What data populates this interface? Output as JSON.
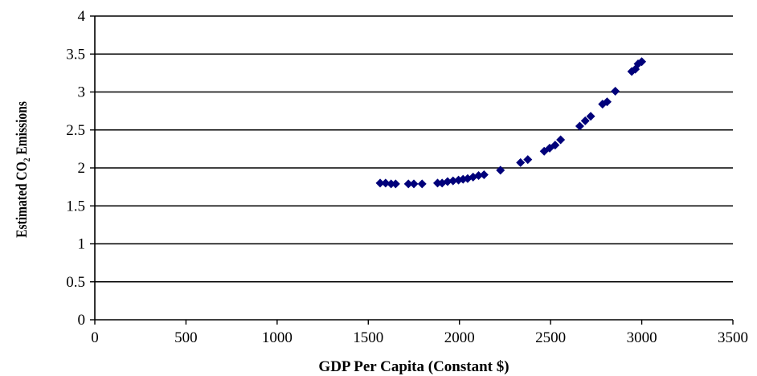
{
  "chart_data": {
    "type": "scatter",
    "title": "",
    "xlabel": "GDP Per Capita (Constant $)",
    "ylabel": "Estimated CO₂ Emissions",
    "xlim": [
      0,
      3500
    ],
    "ylim": [
      0,
      4
    ],
    "x_ticks": [
      "0",
      "500",
      "1000",
      "1500",
      "2000",
      "2500",
      "3000",
      "3500"
    ],
    "y_ticks": [
      "0",
      "0.5",
      "1",
      "1.5",
      "2",
      "2.5",
      "3",
      "3.5",
      "4"
    ],
    "grid": "horizontal",
    "legend": "none",
    "marker_color": "#00007a",
    "series": [
      {
        "points": [
          [
            1565,
            1.8
          ],
          [
            1595,
            1.8
          ],
          [
            1625,
            1.79
          ],
          [
            1650,
            1.79
          ],
          [
            1720,
            1.79
          ],
          [
            1750,
            1.79
          ],
          [
            1795,
            1.79
          ],
          [
            1880,
            1.8
          ],
          [
            1905,
            1.8
          ],
          [
            1935,
            1.82
          ],
          [
            1965,
            1.83
          ],
          [
            1995,
            1.84
          ],
          [
            2020,
            1.85
          ],
          [
            2045,
            1.86
          ],
          [
            2075,
            1.88
          ],
          [
            2105,
            1.9
          ],
          [
            2135,
            1.91
          ],
          [
            2225,
            1.97
          ],
          [
            2335,
            2.07
          ],
          [
            2375,
            2.11
          ],
          [
            2465,
            2.22
          ],
          [
            2495,
            2.26
          ],
          [
            2525,
            2.3
          ],
          [
            2555,
            2.37
          ],
          [
            2660,
            2.55
          ],
          [
            2690,
            2.62
          ],
          [
            2720,
            2.68
          ],
          [
            2785,
            2.84
          ],
          [
            2810,
            2.87
          ],
          [
            2855,
            3.01
          ],
          [
            2945,
            3.27
          ],
          [
            2965,
            3.3
          ],
          [
            2980,
            3.37
          ],
          [
            3000,
            3.4
          ]
        ]
      }
    ]
  }
}
